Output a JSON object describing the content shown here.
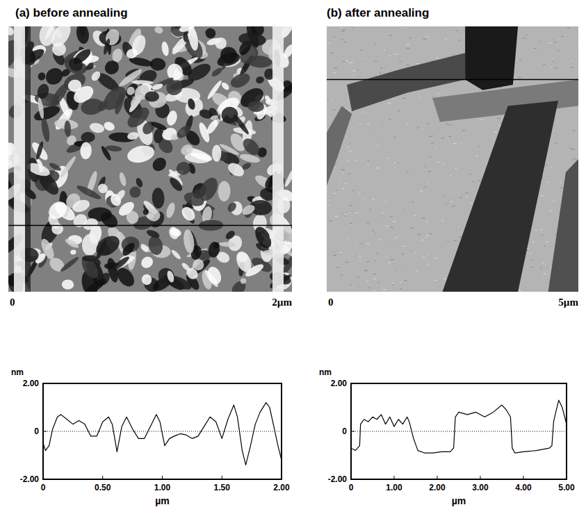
{
  "chart_data": [
    {
      "type": "line",
      "title": "(a) before annealing",
      "annotations": [
        "0",
        "2µm"
      ],
      "xlabel": "µm",
      "ylabel": "nm",
      "color": "#000000",
      "grid": false,
      "x": [
        0,
        0.02,
        0.05,
        0.08,
        0.12,
        0.15,
        0.2,
        0.25,
        0.3,
        0.35,
        0.4,
        0.45,
        0.5,
        0.55,
        0.58,
        0.62,
        0.66,
        0.7,
        0.75,
        0.8,
        0.85,
        0.9,
        0.95,
        0.98,
        1.02,
        1.06,
        1.1,
        1.15,
        1.2,
        1.25,
        1.3,
        1.35,
        1.4,
        1.45,
        1.5,
        1.55,
        1.6,
        1.63,
        1.67,
        1.7,
        1.74,
        1.78,
        1.82,
        1.87,
        1.9,
        1.94,
        1.97,
        2.0
      ],
      "values": [
        -0.5,
        -0.8,
        -0.6,
        0.1,
        0.6,
        0.7,
        0.5,
        0.3,
        0.45,
        0.3,
        -0.2,
        -0.2,
        0.4,
        0.6,
        0.3,
        -0.85,
        0.2,
        0.6,
        0.1,
        -0.3,
        -0.3,
        0.2,
        0.7,
        0.4,
        -0.6,
        -0.3,
        -0.2,
        -0.1,
        -0.15,
        -0.3,
        -0.2,
        0.2,
        0.6,
        0.4,
        -0.3,
        0.5,
        1.1,
        0.6,
        -0.8,
        -1.4,
        -0.6,
        0.3,
        0.8,
        1.2,
        1.0,
        0.1,
        -0.6,
        -1.2
      ],
      "xlim": [
        0,
        2.0
      ],
      "xticks": [
        0,
        {
          "value": 0.5,
          "label": "0.50"
        },
        {
          "value": 1.0,
          "label": "1.00"
        },
        {
          "value": 1.5,
          "label": "1.50"
        },
        {
          "value": 2.0,
          "label": "2.00"
        }
      ],
      "ylim": [
        -2,
        2
      ],
      "yticks": [
        {
          "value": 2,
          "label": "2.00"
        },
        0,
        {
          "value": -2,
          "label": "-2.00"
        }
      ]
    },
    {
      "type": "line",
      "title": "(b) after annealing",
      "annotations": [
        "0",
        "5µm"
      ],
      "xlabel": "µm",
      "ylabel": "nm",
      "color": "#000000",
      "grid": false,
      "x": [
        0,
        0.1,
        0.2,
        0.22,
        0.3,
        0.4,
        0.5,
        0.6,
        0.7,
        0.8,
        0.9,
        1.0,
        1.1,
        1.2,
        1.3,
        1.35,
        1.45,
        1.55,
        1.7,
        1.9,
        2.1,
        2.3,
        2.38,
        2.42,
        2.5,
        2.7,
        2.9,
        3.1,
        3.3,
        3.5,
        3.6,
        3.7,
        3.74,
        3.8,
        4.0,
        4.3,
        4.6,
        4.66,
        4.7,
        4.75,
        4.82,
        4.9,
        5.0
      ],
      "values": [
        -0.7,
        -0.8,
        -0.6,
        0.3,
        0.5,
        0.4,
        0.6,
        0.5,
        0.7,
        0.3,
        0.6,
        0.2,
        0.5,
        0.3,
        0.6,
        0.4,
        -0.3,
        -0.8,
        -0.9,
        -0.9,
        -0.85,
        -0.85,
        -0.7,
        0.6,
        0.8,
        0.7,
        0.8,
        0.6,
        0.8,
        1.1,
        0.9,
        0.6,
        -0.7,
        -0.9,
        -0.85,
        -0.8,
        -0.7,
        -0.6,
        0.4,
        0.8,
        1.3,
        1.0,
        0.3
      ],
      "xlim": [
        0,
        5.0
      ],
      "xticks": [
        0,
        {
          "value": 1,
          "label": "1.00"
        },
        {
          "value": 2,
          "label": "2.00"
        },
        {
          "value": 3,
          "label": "3.00"
        },
        {
          "value": 4,
          "label": "4.00"
        },
        {
          "value": 5,
          "label": "5.00"
        }
      ],
      "ylim": [
        -2,
        2
      ],
      "yticks": [
        {
          "value": 2,
          "label": "2.00"
        },
        0,
        {
          "value": -2,
          "label": "-2.00"
        }
      ]
    }
  ]
}
